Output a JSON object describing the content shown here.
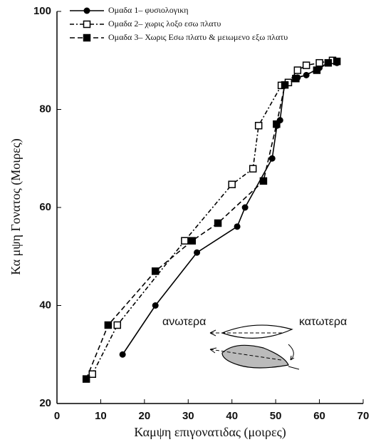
{
  "chart_data": {
    "type": "line",
    "xlabel": "Καμψη επιγονατιδας (μοιρες)",
    "ylabel": "Κα μψη Γονατος (Μοιρες)",
    "xlim": [
      0,
      70
    ],
    "xticks": [
      0,
      10,
      20,
      30,
      40,
      50,
      60,
      70
    ],
    "ylim": [
      20,
      100
    ],
    "yticks": [
      20,
      40,
      60,
      80,
      100
    ],
    "legend": "top",
    "series": [
      {
        "name": "Ομαδα 1– φυσιολογικη",
        "color": "#000000",
        "marker": "circle",
        "dash": "solid",
        "x": [
          15,
          22.5,
          32,
          41.2,
          43,
          49.2,
          50.3,
          51,
          52,
          55,
          57,
          60,
          63,
          64
        ],
        "values": [
          30,
          40,
          50.8,
          56.1,
          60,
          70,
          76.7,
          77.8,
          85,
          86.5,
          87,
          88.5,
          90,
          89.5
        ]
      },
      {
        "name": "Ομαδα 2– χωρις λοξο εσω πλατυ",
        "color": "#000000",
        "marker": "open-square",
        "dash": "dash-dot",
        "x": [
          8.1,
          13.8,
          29.2,
          40,
          44.8,
          46.1,
          51.3,
          52.9,
          55,
          57,
          60,
          63
        ],
        "values": [
          26,
          36,
          53.2,
          64.7,
          67.9,
          76.7,
          84.9,
          85.5,
          88,
          89,
          89.5,
          90
        ]
      },
      {
        "name": "Ομαδα 3– Χωρις Εσω πλατυ & μειωμενο εξω πλατυ",
        "color": "#000000",
        "marker": "square",
        "dash": "dashed",
        "x": [
          6.7,
          11.7,
          22.5,
          30.9,
          36.8,
          47.2,
          50.2,
          52.1,
          54.6,
          59.4,
          62,
          64
        ],
        "values": [
          25,
          36,
          47,
          53.2,
          56.8,
          65.4,
          77,
          85,
          86.3,
          88,
          89.5,
          89.8
        ]
      }
    ],
    "annotations": [
      "ανωτερα",
      "κατωτερα"
    ]
  }
}
